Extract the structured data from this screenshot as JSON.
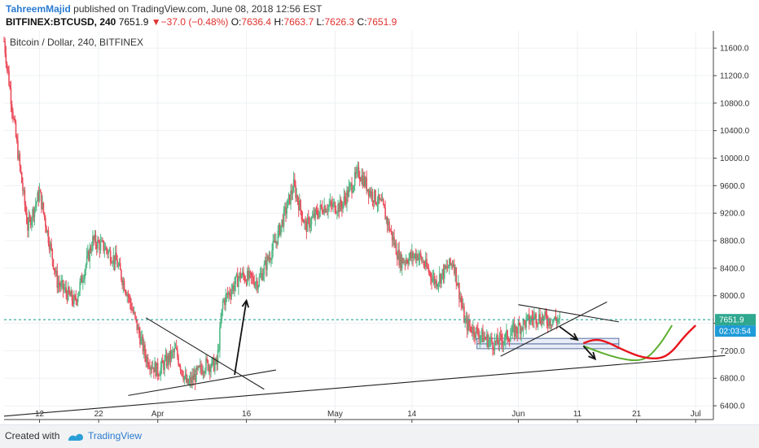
{
  "header": {
    "author": "TahreemMajid",
    "published_text": "published on TradingView.com, June 08, 2018 12:56 EST",
    "symbol": "BITFINEX:BTCUSD, 240",
    "last": "7651.9",
    "change_arrow": "▼",
    "change": "−37.0 (−0.48%)",
    "open_label": "O:",
    "open": "7636.4",
    "high_label": "H:",
    "high": "7663.7",
    "low_label": "L:",
    "low": "7626.3",
    "close_label": "C:",
    "close": "7651.9"
  },
  "chart_title": "Bitcoin / Dollar, 240, BITFINEX",
  "footer": {
    "created_with": "Created with",
    "brand": "TradingView",
    "logo_icon": "tradingview-logo-icon"
  },
  "colors": {
    "up": "#53b987",
    "down": "#eb4d5c",
    "price_line": "#26a69a",
    "price_tag": "#2fa88f",
    "timer_tag": "#1e9bd8",
    "projection_red": "#e8141c",
    "projection_green": "#5cae2e"
  },
  "chart_data": {
    "type": "candlestick",
    "title": "Bitcoin / Dollar, 240, BITFINEX",
    "ylim": [
      6200,
      11850
    ],
    "y_ticks": [
      6400,
      6800,
      7200,
      7600,
      8000,
      8400,
      8800,
      9200,
      9600,
      10000,
      10400,
      10800,
      11200,
      11600
    ],
    "y_tick_labels": [
      "6400.0",
      "6800.0",
      "7200.0",
      "7600.0",
      "8000.0",
      "8400.0",
      "8800.0",
      "9200.0",
      "9600.0",
      "10000.0",
      "10400.0",
      "10800.0",
      "11200.0",
      "11600.0"
    ],
    "x_range": [
      "2018-03-06",
      "2018-07-04"
    ],
    "x_ticks": [
      {
        "date": "2018-03-12",
        "label": "12"
      },
      {
        "date": "2018-03-22",
        "label": "22"
      },
      {
        "date": "2018-04-01",
        "label": "Apr"
      },
      {
        "date": "2018-04-16",
        "label": "16"
      },
      {
        "date": "2018-05-01",
        "label": "May"
      },
      {
        "date": "2018-05-14",
        "label": "14"
      },
      {
        "date": "2018-06-01",
        "label": "Jun"
      },
      {
        "date": "2018-06-11",
        "label": "11"
      },
      {
        "date": "2018-06-21",
        "label": "21"
      },
      {
        "date": "2018-07-01",
        "label": "Jul"
      }
    ],
    "close_path": [
      {
        "date": "2018-03-06",
        "price": 11700
      },
      {
        "date": "2018-03-08",
        "price": 10300
      },
      {
        "date": "2018-03-10",
        "price": 9000
      },
      {
        "date": "2018-03-12",
        "price": 9500
      },
      {
        "date": "2018-03-15",
        "price": 8200
      },
      {
        "date": "2018-03-18",
        "price": 7900
      },
      {
        "date": "2018-03-21",
        "price": 8800
      },
      {
        "date": "2018-03-23",
        "price": 8700
      },
      {
        "date": "2018-03-25",
        "price": 8500
      },
      {
        "date": "2018-03-27",
        "price": 8000
      },
      {
        "date": "2018-03-30",
        "price": 7100
      },
      {
        "date": "2018-04-01",
        "price": 6900
      },
      {
        "date": "2018-04-04",
        "price": 7200
      },
      {
        "date": "2018-04-06",
        "price": 6700
      },
      {
        "date": "2018-04-09",
        "price": 7000
      },
      {
        "date": "2018-04-11",
        "price": 7000
      },
      {
        "date": "2018-04-12",
        "price": 7900
      },
      {
        "date": "2018-04-15",
        "price": 8300
      },
      {
        "date": "2018-04-18",
        "price": 8200
      },
      {
        "date": "2018-04-21",
        "price": 8800
      },
      {
        "date": "2018-04-24",
        "price": 9600
      },
      {
        "date": "2018-04-26",
        "price": 9000
      },
      {
        "date": "2018-04-29",
        "price": 9300
      },
      {
        "date": "2018-05-02",
        "price": 9300
      },
      {
        "date": "2018-05-05",
        "price": 9800
      },
      {
        "date": "2018-05-07",
        "price": 9500
      },
      {
        "date": "2018-05-09",
        "price": 9300
      },
      {
        "date": "2018-05-12",
        "price": 8500
      },
      {
        "date": "2018-05-15",
        "price": 8600
      },
      {
        "date": "2018-05-18",
        "price": 8200
      },
      {
        "date": "2018-05-21",
        "price": 8500
      },
      {
        "date": "2018-05-23",
        "price": 7600
      },
      {
        "date": "2018-05-26",
        "price": 7400
      },
      {
        "date": "2018-05-28",
        "price": 7300
      },
      {
        "date": "2018-05-30",
        "price": 7400
      },
      {
        "date": "2018-06-02",
        "price": 7600
      },
      {
        "date": "2018-06-04",
        "price": 7700
      },
      {
        "date": "2018-06-06",
        "price": 7650
      },
      {
        "date": "2018-06-08",
        "price": 7651.9
      }
    ],
    "last_price": 7651.9,
    "last_price_label": "7651.9",
    "timer_label": "02:03:54",
    "trend_lines": [
      {
        "name": "long-support",
        "from": {
          "date": "2018-03-06",
          "price": 6250
        },
        "to": {
          "date": "2018-07-06",
          "price": 7130
        }
      },
      {
        "name": "april-triangle-upper",
        "from": {
          "date": "2018-03-30",
          "price": 7680
        },
        "to": {
          "date": "2018-04-19",
          "price": 6640
        }
      },
      {
        "name": "april-triangle-lower",
        "from": {
          "date": "2018-03-27",
          "price": 6550
        },
        "to": {
          "date": "2018-04-21",
          "price": 6920
        }
      },
      {
        "name": "june-triangle-upper",
        "from": {
          "date": "2018-06-01",
          "price": 7870
        },
        "to": {
          "date": "2018-06-18",
          "price": 7620
        }
      },
      {
        "name": "june-triangle-lower",
        "from": {
          "date": "2018-05-29",
          "price": 7120
        },
        "to": {
          "date": "2018-06-16",
          "price": 7910
        }
      }
    ],
    "zones": [
      {
        "from": "2018-05-25",
        "to": "2018-06-18",
        "top": 7380,
        "bottom": 7300
      },
      {
        "from": "2018-05-25",
        "to": "2018-06-18",
        "top": 7300,
        "bottom": 7230
      }
    ],
    "arrows": [
      {
        "from": {
          "date": "2018-04-14",
          "price": 6850
        },
        "to": {
          "date": "2018-04-16",
          "price": 7930
        }
      },
      {
        "from": {
          "date": "2018-06-08",
          "price": 7550
        },
        "to": {
          "date": "2018-06-11",
          "price": 7360
        }
      },
      {
        "from": {
          "date": "2018-06-12",
          "price": 7270
        },
        "to": {
          "date": "2018-06-14",
          "price": 7080
        }
      }
    ],
    "projection_red": [
      {
        "date": "2018-06-12",
        "price": 7310
      },
      {
        "date": "2018-06-14",
        "price": 7370
      },
      {
        "date": "2018-06-16",
        "price": 7330
      },
      {
        "date": "2018-06-19",
        "price": 7200
      },
      {
        "date": "2018-06-22",
        "price": 7100
      },
      {
        "date": "2018-06-25",
        "price": 7080
      },
      {
        "date": "2018-06-27",
        "price": 7180
      },
      {
        "date": "2018-06-29",
        "price": 7400
      },
      {
        "date": "2018-07-01",
        "price": 7570
      }
    ],
    "projection_green": [
      {
        "date": "2018-06-12",
        "price": 7270
      },
      {
        "date": "2018-06-15",
        "price": 7170
      },
      {
        "date": "2018-06-18",
        "price": 7090
      },
      {
        "date": "2018-06-21",
        "price": 7050
      },
      {
        "date": "2018-06-23",
        "price": 7100
      },
      {
        "date": "2018-06-25",
        "price": 7300
      },
      {
        "date": "2018-06-26",
        "price": 7430
      },
      {
        "date": "2018-06-27",
        "price": 7570
      }
    ]
  }
}
